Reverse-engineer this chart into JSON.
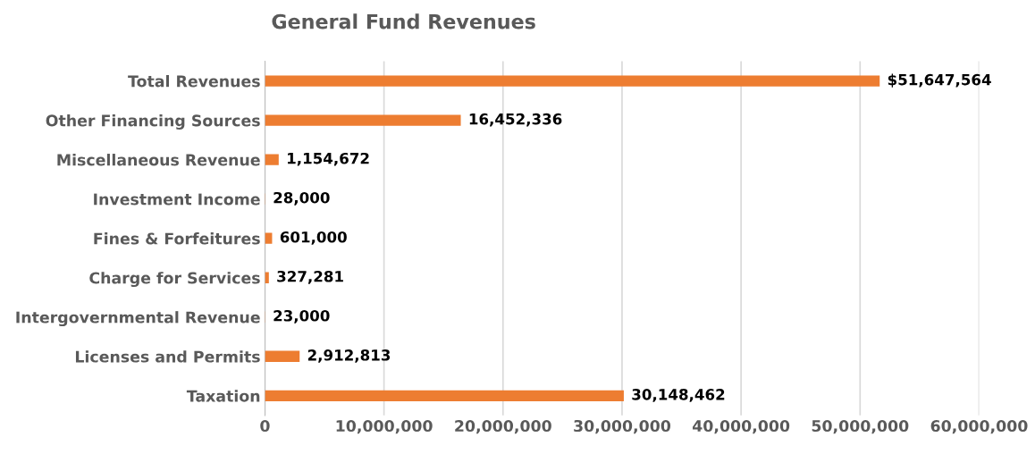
{
  "chart_data": {
    "type": "bar",
    "orientation": "horizontal",
    "title": "General Fund Revenues",
    "categories": [
      "Total Revenues",
      "Other Financing Sources",
      "Miscellaneous Revenue",
      "Investment Income",
      "Fines & Forfeitures",
      "Charge for Services",
      "Intergovernmental Revenue",
      "Licenses and Permits",
      "Taxation"
    ],
    "values": [
      51647564,
      16452336,
      1154672,
      28000,
      601000,
      327281,
      23000,
      2912813,
      30148462
    ],
    "value_labels": [
      "$51,647,564",
      "16,452,336",
      "1,154,672",
      "28,000",
      "601,000",
      "327,281",
      "23,000",
      "2,912,813",
      "30,148,462"
    ],
    "color": "#ed7d31",
    "xlim": [
      0,
      60000000
    ],
    "xticks": [
      {
        "value": 0,
        "label": "0"
      },
      {
        "value": 10000000,
        "label": "10,000,000"
      },
      {
        "value": 20000000,
        "label": "20,000,000"
      },
      {
        "value": 30000000,
        "label": "30,000,000"
      },
      {
        "value": 40000000,
        "label": "40,000,000"
      },
      {
        "value": 50000000,
        "label": "50,000,000"
      },
      {
        "value": 60000000,
        "label": "60,000,000"
      }
    ],
    "grid": "x"
  }
}
